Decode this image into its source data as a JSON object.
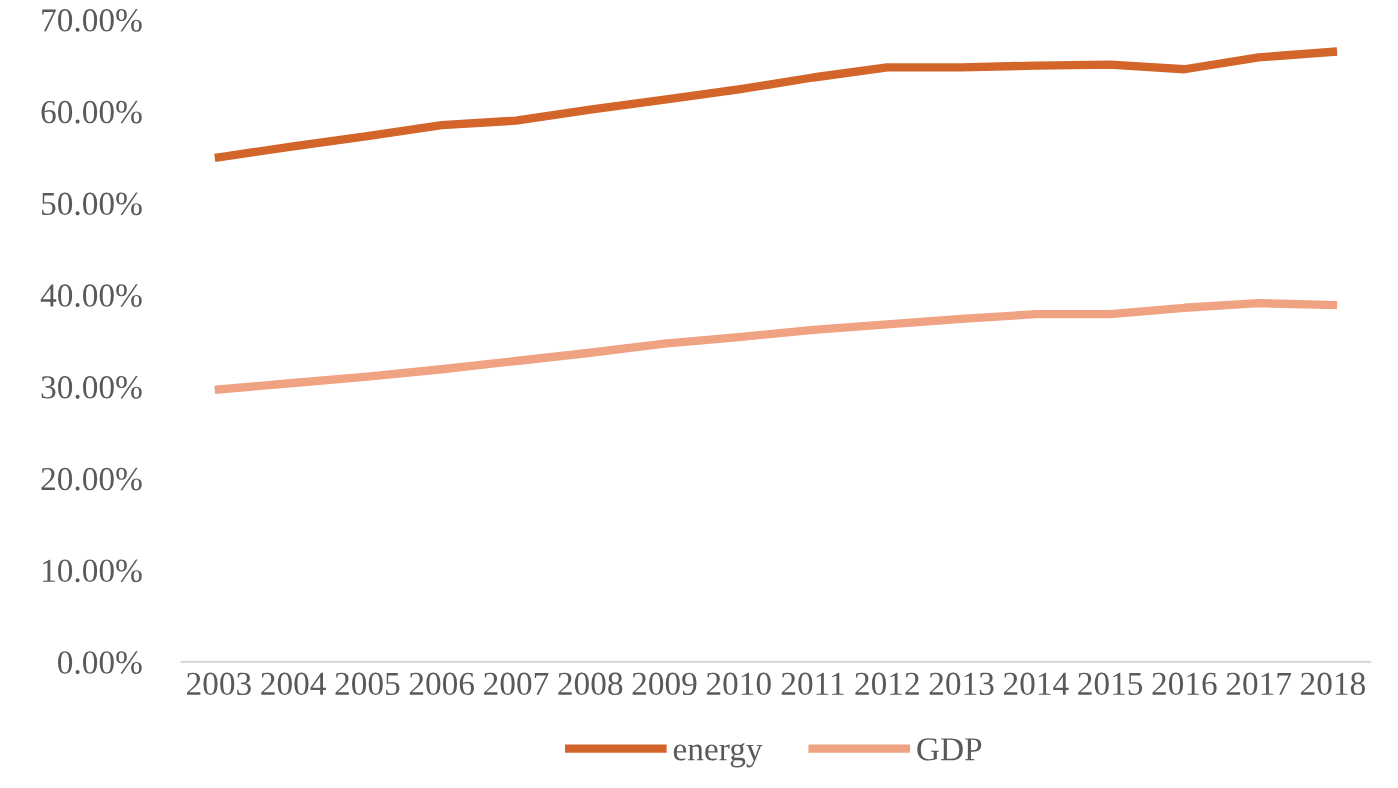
{
  "chart_data": {
    "type": "line",
    "categories": [
      "2003",
      "2004",
      "2005",
      "2006",
      "2007",
      "2008",
      "2009",
      "2010",
      "2011",
      "2012",
      "2013",
      "2014",
      "2015",
      "2016",
      "2017",
      "2018"
    ],
    "series": [
      {
        "name": "energy",
        "color": "#d4652a",
        "values": [
          55.0,
          56.2,
          57.3,
          58.5,
          59.0,
          60.2,
          61.3,
          62.4,
          63.7,
          64.8,
          64.8,
          65.0,
          65.1,
          64.6,
          65.9,
          66.5
        ]
      },
      {
        "name": "GDP",
        "color": "#f0a383",
        "values": [
          29.7,
          30.4,
          31.1,
          31.9,
          32.8,
          33.7,
          34.7,
          35.4,
          36.2,
          36.8,
          37.4,
          37.9,
          37.9,
          38.6,
          39.1,
          38.9
        ]
      }
    ],
    "ylim": [
      0,
      70
    ],
    "yticks": [
      {
        "value": 0,
        "label": "0.00%"
      },
      {
        "value": 10,
        "label": "10.00%"
      },
      {
        "value": 20,
        "label": "20.00%"
      },
      {
        "value": 30,
        "label": "30.00%"
      },
      {
        "value": 40,
        "label": "40.00%"
      },
      {
        "value": 50,
        "label": "50.00%"
      },
      {
        "value": 60,
        "label": "60.00%"
      },
      {
        "value": 70,
        "label": "70.00%"
      }
    ],
    "grid": false,
    "legend": "bottom",
    "marker": "none",
    "line_style": "solid"
  }
}
